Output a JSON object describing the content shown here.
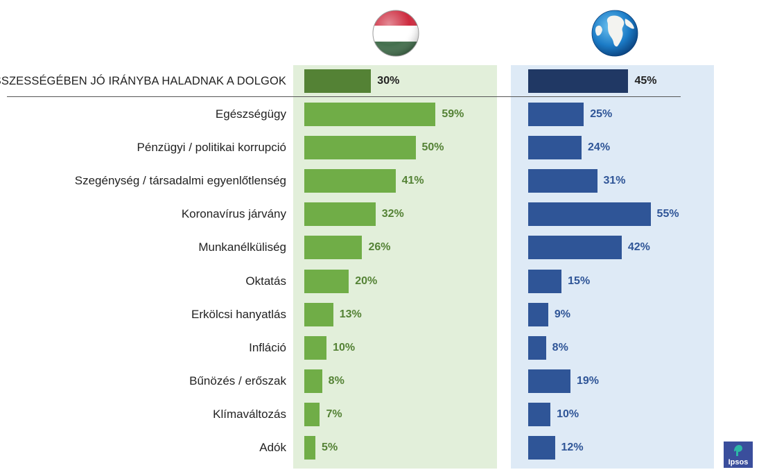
{
  "chart_data": {
    "type": "bar",
    "orientation": "horizontal",
    "headline": {
      "label": "ÖSSZESSÉGÉBEN JÓ IRÁNYBA HALADNAK A DOLGOK",
      "hungary": 30,
      "global": 45
    },
    "categories": [
      "Egészségügy",
      "Pénzügyi / politikai korrupció",
      "Szegénység / társadalmi egyenlőtlenség",
      "Koronavírus járvány",
      "Munkanélküliség",
      "Oktatás",
      "Erkölcsi hanyatlás",
      "Infláció",
      "Bűnözés / erőszak",
      "Klímaváltozás",
      "Adók"
    ],
    "series": [
      {
        "key": "hungary",
        "values": [
          59,
          50,
          41,
          32,
          26,
          20,
          13,
          10,
          8,
          7,
          5
        ]
      },
      {
        "key": "global",
        "values": [
          25,
          24,
          31,
          55,
          42,
          15,
          9,
          8,
          19,
          10,
          12
        ]
      }
    ],
    "unit": "%",
    "colors": {
      "hungary_headline": "#548235",
      "hungary_bar": "#70ad47",
      "hungary_text": "#548235",
      "hungary_panel": "#e2efda",
      "global_headline": "#203864",
      "global_bar": "#2f5597",
      "global_text": "#2f5597",
      "global_panel": "#deeaf6"
    }
  },
  "icons": {
    "hungary": "hungarian-flag-icon",
    "global": "globe-icon",
    "brand": "ipsos-logo"
  },
  "brand": {
    "name": "Ipsos"
  }
}
